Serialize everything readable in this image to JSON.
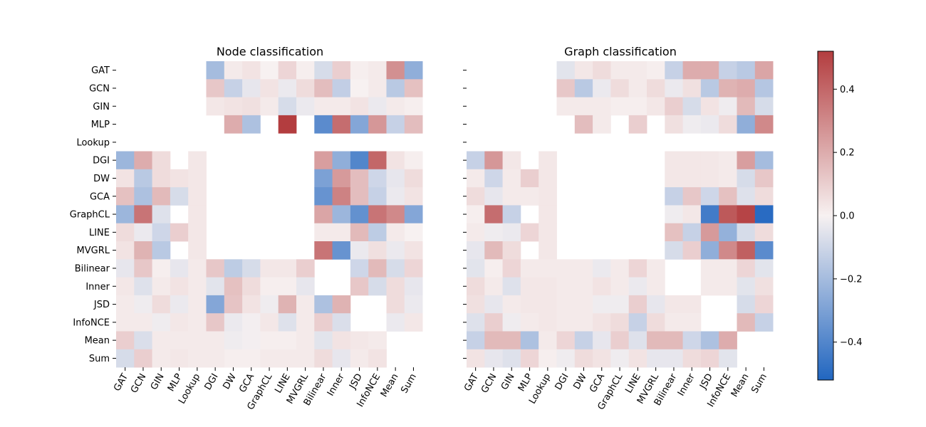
{
  "chart_data": {
    "type": "heatmap",
    "labels": [
      "GAT",
      "GCN",
      "GIN",
      "MLP",
      "Lookup",
      "DGI",
      "DW",
      "GCA",
      "GraphCL",
      "LINE",
      "MVGRL",
      "Bilinear",
      "Inner",
      "JSD",
      "InfoNCE",
      "Mean",
      "Sum"
    ],
    "colormap": {
      "name": "vlag",
      "low": "#2166c0",
      "mid": "#f7f1f1",
      "high": "#b33d3f"
    },
    "color_range": [
      -0.52,
      0.52
    ],
    "colorbar_ticks": [
      0.4,
      0.2,
      0.0,
      -0.2,
      -0.4
    ],
    "colorbar_tick_labels": [
      "0.4",
      "0.2",
      "0.0",
      "−0.2",
      "−0.4"
    ],
    "panels": [
      {
        "title": "Node classification",
        "show_row_labels": true,
        "values": [
          [
            null,
            null,
            null,
            null,
            null,
            -0.2,
            0.02,
            0.04,
            0.0,
            0.08,
            0.01,
            -0.08,
            0.1,
            0.01,
            0.02,
            0.28,
            -0.25
          ],
          [
            null,
            null,
            null,
            null,
            null,
            0.12,
            -0.12,
            -0.04,
            0.04,
            -0.03,
            0.06,
            0.15,
            -0.13,
            0.0,
            0.02,
            -0.15,
            0.14
          ],
          [
            null,
            null,
            null,
            null,
            null,
            0.03,
            0.04,
            0.05,
            0.02,
            -0.08,
            -0.03,
            0.02,
            0.02,
            0.04,
            -0.03,
            0.02,
            0.01
          ],
          [
            null,
            null,
            null,
            null,
            null,
            null,
            0.2,
            -0.18,
            null,
            0.52,
            null,
            -0.38,
            0.38,
            -0.28,
            0.26,
            -0.12,
            0.15
          ],
          [
            null,
            null,
            null,
            null,
            null,
            null,
            null,
            null,
            null,
            null,
            null,
            null,
            null,
            null,
            null,
            null,
            null
          ],
          [
            -0.22,
            0.2,
            0.06,
            null,
            0.03,
            null,
            null,
            null,
            null,
            null,
            null,
            0.24,
            -0.25,
            -0.4,
            0.4,
            0.04,
            0.01
          ],
          [
            0.04,
            -0.15,
            0.06,
            0.04,
            0.03,
            null,
            null,
            null,
            null,
            null,
            null,
            -0.3,
            0.25,
            0.15,
            -0.1,
            -0.04,
            0.06
          ],
          [
            0.14,
            -0.18,
            0.16,
            -0.08,
            0.03,
            null,
            null,
            null,
            null,
            null,
            null,
            -0.35,
            0.32,
            0.15,
            -0.12,
            -0.03,
            0.04
          ],
          [
            -0.22,
            0.36,
            -0.06,
            null,
            0.03,
            null,
            null,
            null,
            null,
            null,
            null,
            0.22,
            -0.22,
            -0.36,
            0.36,
            0.3,
            -0.28
          ],
          [
            0.06,
            -0.03,
            -0.1,
            0.1,
            0.03,
            null,
            null,
            null,
            null,
            null,
            null,
            0.02,
            0.02,
            0.16,
            -0.14,
            0.02,
            0.0
          ],
          [
            0.04,
            0.18,
            -0.15,
            null,
            0.03,
            null,
            null,
            null,
            null,
            null,
            null,
            0.36,
            -0.35,
            -0.03,
            0.05,
            -0.03,
            0.04
          ],
          [
            -0.04,
            0.12,
            0.01,
            -0.04,
            0.02,
            0.12,
            -0.14,
            -0.08,
            0.03,
            0.03,
            0.1,
            null,
            null,
            -0.1,
            0.16,
            -0.08,
            0.08
          ],
          [
            0.03,
            -0.06,
            0.02,
            0.04,
            0.02,
            -0.05,
            0.14,
            0.06,
            0.01,
            0.01,
            -0.04,
            null,
            null,
            0.12,
            -0.08,
            0.06,
            -0.04
          ],
          [
            0.02,
            -0.02,
            0.06,
            -0.03,
            0.02,
            -0.28,
            0.13,
            0.04,
            -0.02,
            0.18,
            0.02,
            -0.18,
            0.18,
            null,
            null,
            0.06,
            -0.03
          ],
          [
            0.02,
            0.02,
            -0.02,
            0.03,
            0.02,
            0.12,
            -0.03,
            -0.01,
            0.03,
            -0.06,
            0.02,
            0.1,
            -0.07,
            null,
            null,
            -0.03,
            0.03
          ],
          [
            0.1,
            -0.07,
            0.02,
            0.02,
            0.02,
            0.02,
            -0.02,
            -0.01,
            0.01,
            0.01,
            0.02,
            -0.05,
            0.04,
            0.03,
            0.02,
            null,
            null
          ],
          [
            -0.08,
            0.1,
            0.02,
            0.03,
            0.02,
            0.02,
            0.01,
            0.01,
            0.02,
            0.02,
            0.02,
            0.06,
            -0.04,
            0.02,
            0.04,
            null,
            null
          ]
        ]
      },
      {
        "title": "Graph classification",
        "show_row_labels": false,
        "values": [
          [
            null,
            null,
            null,
            null,
            null,
            -0.05,
            0.03,
            0.06,
            0.02,
            0.02,
            0.01,
            -0.12,
            0.2,
            0.2,
            -0.12,
            -0.15,
            0.22
          ],
          [
            null,
            null,
            null,
            null,
            null,
            0.12,
            -0.15,
            -0.03,
            0.06,
            0.02,
            0.06,
            -0.03,
            0.05,
            -0.15,
            0.18,
            0.2,
            -0.16
          ],
          [
            null,
            null,
            null,
            null,
            null,
            0.02,
            0.02,
            0.02,
            0.01,
            0.01,
            0.03,
            0.1,
            -0.08,
            0.04,
            -0.02,
            0.16,
            -0.08
          ],
          [
            null,
            null,
            null,
            null,
            null,
            null,
            0.15,
            0.02,
            null,
            0.1,
            null,
            0.05,
            -0.02,
            -0.03,
            0.06,
            -0.25,
            0.3
          ],
          [
            null,
            null,
            null,
            null,
            null,
            null,
            null,
            null,
            null,
            null,
            null,
            null,
            null,
            null,
            null,
            null,
            null
          ],
          [
            -0.12,
            0.26,
            0.03,
            null,
            0.03,
            null,
            null,
            null,
            null,
            null,
            null,
            0.03,
            0.03,
            0.03,
            0.02,
            0.24,
            -0.2
          ],
          [
            0.02,
            -0.1,
            0.02,
            0.1,
            0.03,
            null,
            null,
            null,
            null,
            null,
            null,
            0.03,
            0.03,
            0.03,
            0.02,
            -0.08,
            0.12
          ],
          [
            0.06,
            -0.04,
            0.02,
            0.02,
            0.03,
            null,
            null,
            null,
            null,
            null,
            null,
            -0.12,
            0.12,
            -0.1,
            0.14,
            -0.06,
            0.06
          ],
          [
            0.01,
            0.38,
            -0.12,
            null,
            0.03,
            null,
            null,
            null,
            null,
            null,
            null,
            -0.02,
            0.03,
            -0.44,
            0.44,
            0.5,
            -0.5
          ],
          [
            0.02,
            -0.02,
            -0.03,
            0.08,
            0.03,
            null,
            null,
            null,
            null,
            null,
            null,
            0.14,
            -0.12,
            0.25,
            -0.24,
            -0.08,
            0.06
          ],
          [
            -0.04,
            0.16,
            0.06,
            null,
            0.03,
            null,
            null,
            null,
            null,
            null,
            null,
            -0.08,
            0.1,
            -0.25,
            0.3,
            0.42,
            -0.38
          ],
          [
            -0.05,
            0.01,
            0.08,
            0.02,
            0.02,
            0.02,
            0.02,
            -0.03,
            0.02,
            0.08,
            0.02,
            null,
            null,
            0.02,
            0.02,
            0.08,
            -0.05
          ],
          [
            0.06,
            0.02,
            -0.06,
            0.03,
            0.03,
            0.02,
            0.02,
            0.04,
            0.02,
            -0.03,
            0.02,
            null,
            null,
            0.02,
            0.02,
            -0.05,
            0.05
          ],
          [
            0.05,
            -0.04,
            0.02,
            0.03,
            0.03,
            0.02,
            0.02,
            -0.02,
            -0.02,
            0.1,
            -0.04,
            0.03,
            0.03,
            null,
            null,
            -0.08,
            0.08
          ],
          [
            -0.06,
            0.1,
            -0.02,
            0.02,
            0.03,
            0.02,
            0.02,
            0.04,
            0.06,
            -0.12,
            0.06,
            0.02,
            0.02,
            null,
            null,
            0.16,
            -0.12
          ],
          [
            -0.12,
            0.16,
            0.16,
            -0.18,
            0.02,
            0.08,
            -0.12,
            -0.04,
            0.1,
            -0.06,
            0.16,
            0.16,
            -0.1,
            -0.18,
            0.2,
            null,
            null
          ],
          [
            0.04,
            -0.04,
            -0.06,
            0.08,
            0.01,
            -0.02,
            0.06,
            0.04,
            -0.02,
            0.04,
            -0.04,
            -0.04,
            0.06,
            0.08,
            -0.05,
            null,
            null
          ]
        ]
      }
    ]
  }
}
